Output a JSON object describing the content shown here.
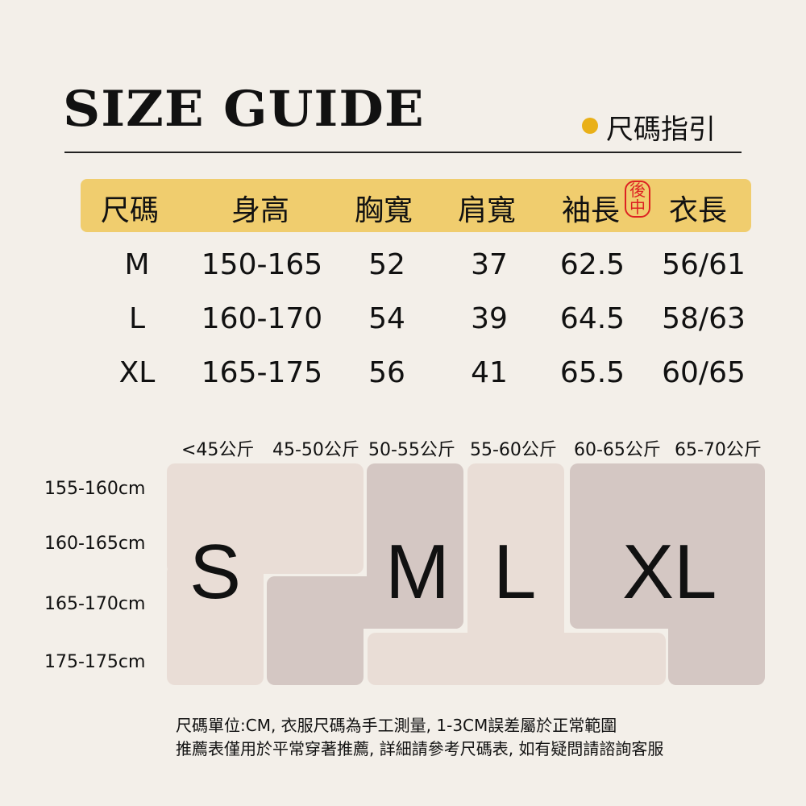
{
  "title": "SIZE GUIDE",
  "subtitle": "尺碼指引",
  "accent": "#e9b018",
  "table": {
    "headers": [
      "尺碼",
      "身高",
      "胸寬",
      "肩寬",
      "袖長",
      "衣長"
    ],
    "sleeve_note": "後中",
    "rows": [
      [
        "M",
        "150-165",
        "52",
        "37",
        "62.5",
        "56/61"
      ],
      [
        "L",
        "160-170",
        "54",
        "39",
        "64.5",
        "58/63"
      ],
      [
        "XL",
        "165-175",
        "56",
        "41",
        "65.5",
        "60/65"
      ]
    ]
  },
  "chart": {
    "weights": [
      "<45公斤",
      "45-50公斤",
      "50-55公斤",
      "55-60公斤",
      "60-65公斤",
      "65-70公斤"
    ],
    "heights": [
      "155-160cm",
      "160-165cm",
      "165-170cm",
      "175-175cm"
    ],
    "sizes": [
      "S",
      "M",
      "L",
      "XL"
    ]
  },
  "notes": [
    "尺碼單位:CM, 衣服尺碼為手工測量, 1-3CM誤差屬於正常範圍",
    "推薦表僅用於平常穿著推薦, 詳細請參考尺碼表, 如有疑問請諮詢客服"
  ]
}
